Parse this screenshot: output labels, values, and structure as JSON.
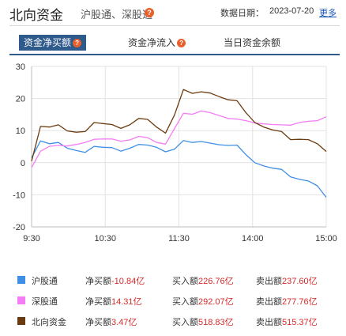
{
  "header": {
    "title": "北向资金",
    "subtitle": "沪股通、深股通",
    "help_mark": "?",
    "date_label": "数据日期：",
    "date_value": "2023-07-20",
    "more_label": "更多"
  },
  "tabs": [
    {
      "label": "资金净买额",
      "active": true,
      "has_help": true
    },
    {
      "label": "资金净流入",
      "active": false,
      "has_help": true
    },
    {
      "label": "当日资金余额",
      "active": false,
      "has_help": false
    }
  ],
  "colors": {
    "hgt": "#3f8fe6",
    "sgt": "#f47cf4",
    "north": "#6b3a0f",
    "accent": "#2f5a8c",
    "value_red": "#d42a2a"
  },
  "chart_data": {
    "type": "line",
    "ylim": [
      -20,
      30
    ],
    "yticks": [
      -20,
      -10,
      0,
      10,
      20,
      30
    ],
    "xticks": [
      "9:30",
      "10:30",
      "11:30",
      "14:00",
      "15:00"
    ],
    "xlabel": "",
    "ylabel": "",
    "grid": true,
    "series": [
      {
        "name": "沪股通",
        "color_key": "hgt",
        "values": [
          1.5,
          6.8,
          5.9,
          6.3,
          4.5,
          3.8,
          3.2,
          5.1,
          4.8,
          4.7,
          3.6,
          4.5,
          5.7,
          5.5,
          4.8,
          3.4,
          4.2,
          6.9,
          6.3,
          6.6,
          6.1,
          5.6,
          5.4,
          5.5,
          2.5,
          0.0,
          -1.0,
          -1.7,
          -2.1,
          -4.4,
          -5.2,
          -5.7,
          -7.2,
          -10.8
        ]
      },
      {
        "name": "深股通",
        "color_key": "sgt",
        "values": [
          -1.5,
          3.6,
          5.1,
          5.4,
          5.2,
          5.7,
          6.3,
          7.3,
          7.4,
          7.4,
          6.7,
          7.1,
          8.2,
          7.8,
          6.3,
          5.8,
          10.6,
          15.4,
          15.1,
          16.1,
          15.6,
          14.7,
          13.8,
          13.6,
          13.1,
          12.4,
          12.1,
          11.9,
          11.8,
          11.7,
          12.5,
          12.9,
          13.1,
          14.3
        ]
      },
      {
        "name": "北向资金",
        "color_key": "north",
        "values": [
          0.5,
          11.3,
          11.1,
          11.8,
          9.9,
          9.5,
          9.7,
          12.5,
          12.2,
          11.9,
          10.7,
          11.8,
          13.8,
          13.5,
          11.1,
          9.2,
          14.8,
          22.8,
          21.6,
          22.1,
          21.7,
          20.6,
          19.6,
          19.3,
          15.6,
          12.5,
          11.1,
          10.2,
          9.7,
          7.2,
          7.3,
          7.2,
          5.9,
          3.5
        ]
      }
    ]
  },
  "legend": [
    {
      "name": "沪股通",
      "color_key": "hgt",
      "net_label": "净买额",
      "net_value": "-10.84亿",
      "buy_label": "买入额",
      "buy_value": "226.76亿",
      "sell_label": "卖出额",
      "sell_value": "237.60亿"
    },
    {
      "name": "深股通",
      "color_key": "sgt",
      "net_label": "净买额",
      "net_value": "14.31亿",
      "buy_label": "买入额",
      "buy_value": "292.07亿",
      "sell_label": "卖出额",
      "sell_value": "277.76亿"
    },
    {
      "name": "北向资金",
      "color_key": "north",
      "net_label": "净买额",
      "net_value": "3.47亿",
      "buy_label": "买入额",
      "buy_value": "518.83亿",
      "sell_label": "卖出额",
      "sell_value": "515.37亿"
    }
  ]
}
